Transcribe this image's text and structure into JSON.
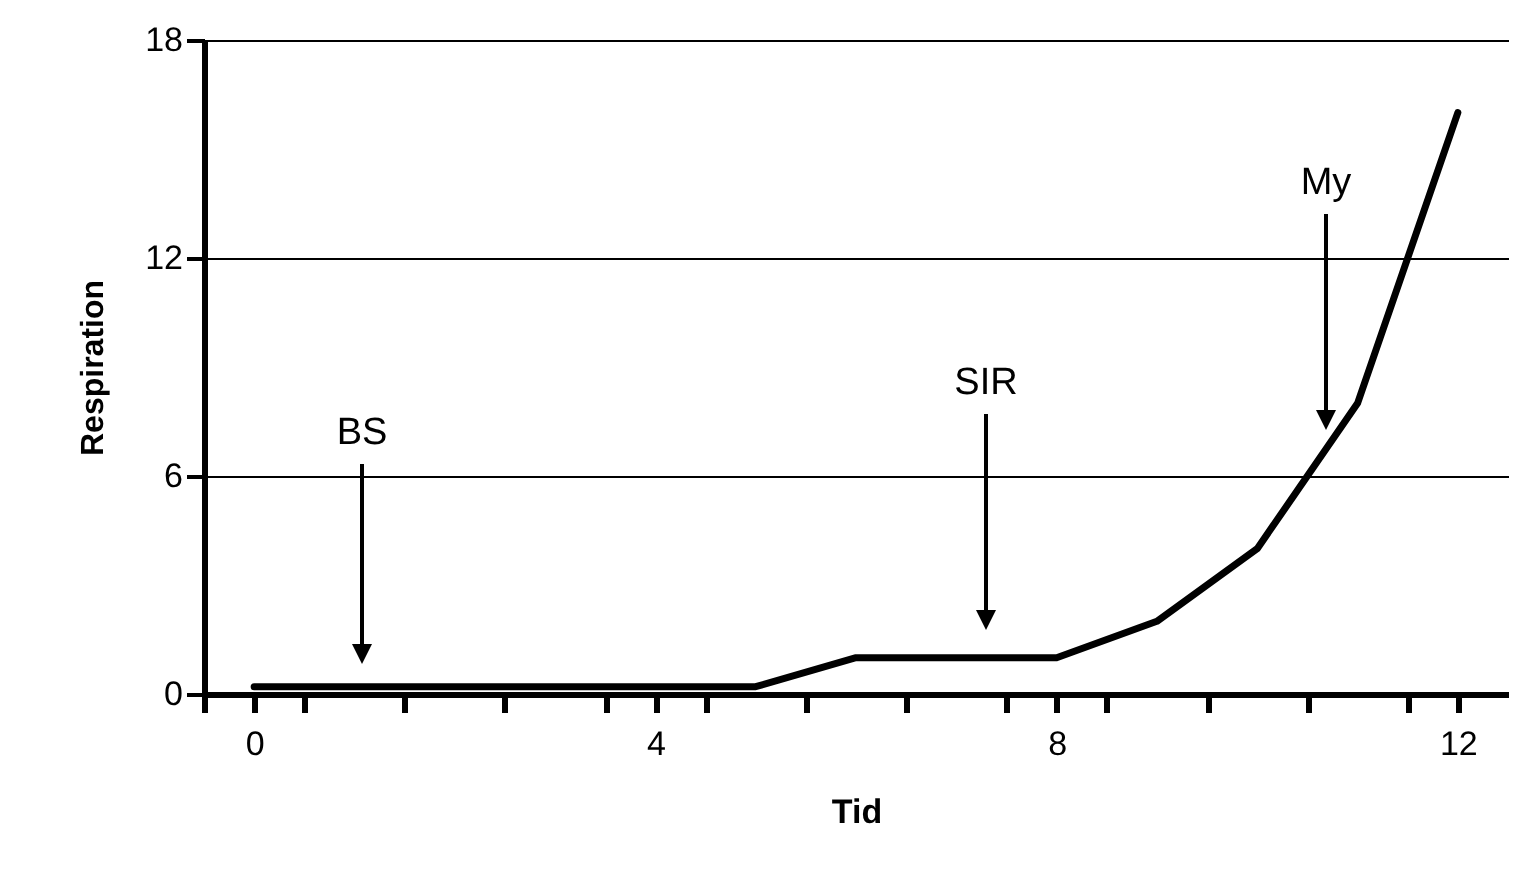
{
  "chart_data": {
    "type": "line",
    "xlabel": "Tid",
    "ylabel": "Respiration",
    "x": [
      0,
      1,
      2,
      3,
      4,
      5,
      6,
      7,
      8,
      9,
      10,
      11,
      12
    ],
    "series": [
      {
        "color": "#000000",
        "values": [
          0.2,
          0.2,
          0.2,
          0.2,
          0.2,
          0.2,
          1,
          1,
          1,
          2,
          4,
          8,
          16
        ]
      }
    ],
    "xlim": [
      -0.5,
      12.5
    ],
    "xticks": [
      {
        "value": -0.5,
        "label": null
      },
      0,
      {
        "value": 0.5,
        "label": null
      },
      {
        "value": 1.5,
        "label": null
      },
      {
        "value": 2.5,
        "label": null
      },
      {
        "value": 3.5,
        "label": null
      },
      4,
      {
        "value": 4.5,
        "label": null
      },
      {
        "value": 5.5,
        "label": null
      },
      {
        "value": 6.5,
        "label": null
      },
      {
        "value": 7.5,
        "label": null
      },
      8,
      {
        "value": 8.5,
        "label": null
      },
      {
        "value": 9.5,
        "label": null
      },
      {
        "value": 10.5,
        "label": null
      },
      {
        "value": 11.5,
        "label": null
      },
      12
    ],
    "ylim": [
      0,
      18
    ],
    "yticks": [
      0,
      6,
      12,
      18
    ],
    "grid": "y",
    "marker": "none",
    "line_style": "solid",
    "annotations": [
      "BS",
      "SIR",
      "My"
    ]
  }
}
